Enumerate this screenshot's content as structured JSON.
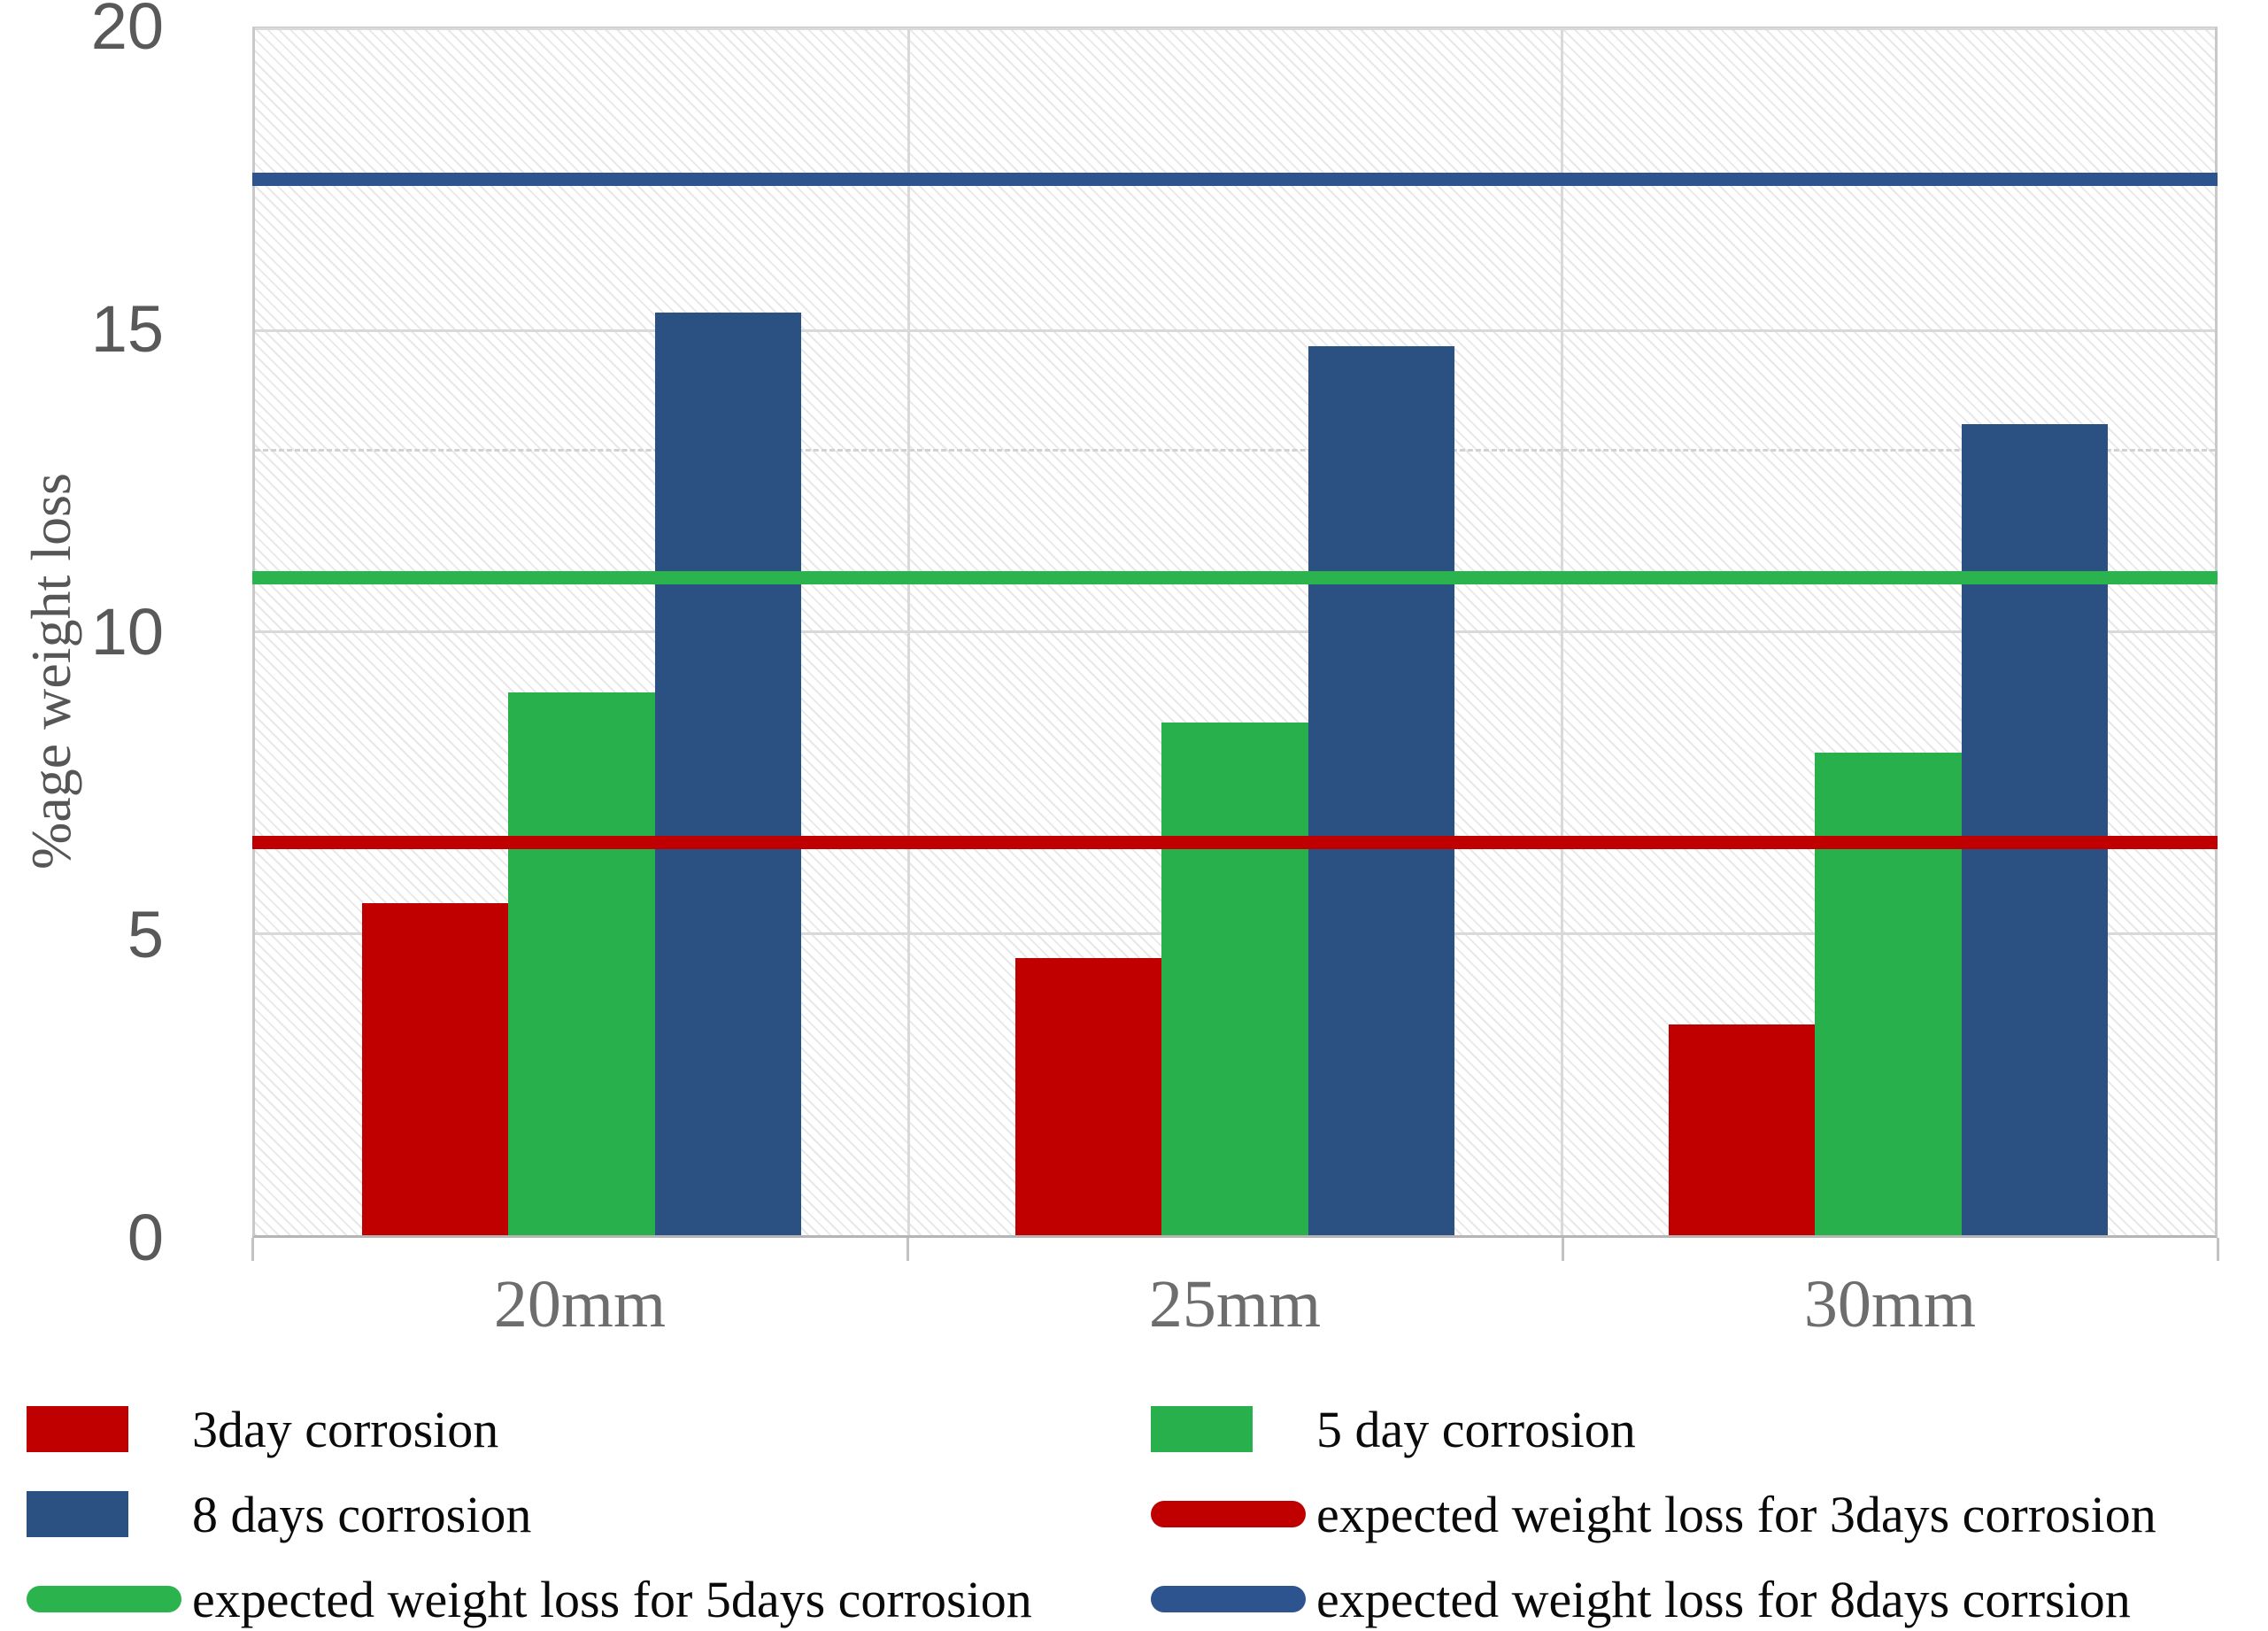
{
  "chart_data": {
    "type": "bar",
    "title": "",
    "xlabel": "",
    "ylabel": "%age weight loss",
    "categories": [
      "20mm",
      "25mm",
      "30mm"
    ],
    "series": [
      {
        "name": "3day corrosion",
        "render": "bar",
        "color": "#c00000",
        "values": [
          5.5,
          4.6,
          3.5
        ]
      },
      {
        "name": "5 day corrosion",
        "render": "bar",
        "color": "#27b04b",
        "values": [
          9.0,
          8.5,
          8.0
        ]
      },
      {
        "name": "8 days corrosion",
        "render": "bar",
        "color": "#2b5183",
        "values": [
          15.3,
          14.75,
          13.45
        ]
      },
      {
        "name": "expected weight loss for 3days corrosion",
        "render": "line",
        "color": "#c00000",
        "value": 6.5
      },
      {
        "name": "expected weight loss for 5days corrosion",
        "render": "line",
        "color": "#2bb44e",
        "value": 10.9
      },
      {
        "name": "expected weight loss for 8days corrsion",
        "render": "line",
        "color": "#2e5490",
        "value": 17.5
      }
    ],
    "ylim": [
      0,
      20
    ],
    "yticks": [
      0,
      5,
      10,
      15,
      20
    ],
    "grid": true,
    "legend_position": "bottom",
    "layout": {
      "gridline_color": "#d9d9d9",
      "plot_border_color": "#c9c9c9",
      "hatch_background": true,
      "minor_dashed_gridline_y": 13,
      "vertical_gridlines_between_categories": true
    }
  }
}
